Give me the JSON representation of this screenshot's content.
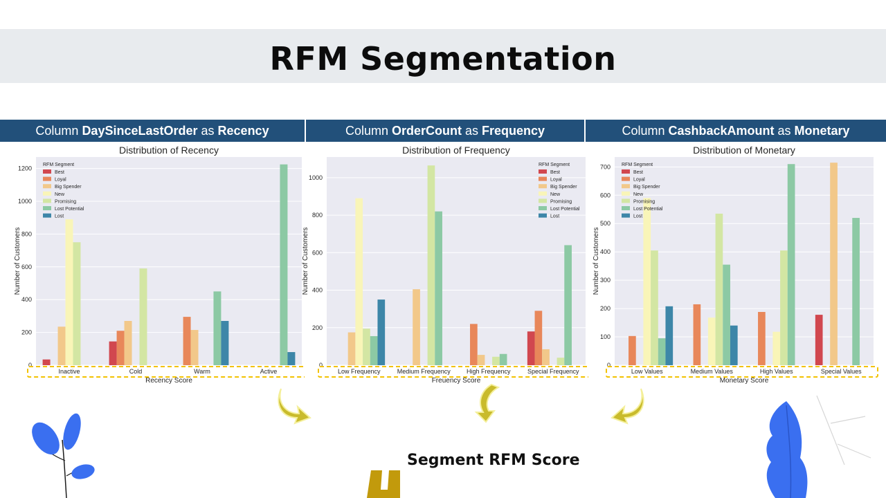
{
  "slide": {
    "title": "RFM Segmentation",
    "footer": "Segment RFM Score"
  },
  "headers": [
    {
      "prefix": "Column ",
      "column": "DaySinceLastOrder",
      "mid": " as ",
      "metric": "Recency"
    },
    {
      "prefix": "Column ",
      "column": "OrderCount",
      "mid": " as ",
      "metric": "Frequency"
    },
    {
      "prefix": "Column ",
      "column": "CashbackAmount",
      "mid": " as ",
      "metric": "Monetary"
    }
  ],
  "colors": {
    "header_bg": "#22507a",
    "title_band": "#e8ebee",
    "plot_bg": "#eaeaf2",
    "highlight": "#f2c200",
    "arrow": "#c9bb2c",
    "leaf_blue": "#3a6ff0"
  },
  "chart_data": [
    {
      "type": "bar",
      "title": "Distribution of Recency",
      "xlabel": "Recency Score",
      "ylabel": "Number of Customers",
      "categories": [
        "Inactive",
        "Cold",
        "Warm",
        "Active"
      ],
      "ylim": [
        0,
        1270
      ],
      "yticks": [
        0,
        200,
        400,
        600,
        800,
        1000,
        1200
      ],
      "grid": true,
      "legend_title": "RFM Segment",
      "legend_position": "top-left",
      "series": [
        {
          "name": "Best",
          "color": "#d1474f",
          "values": [
            35,
            145,
            0,
            0
          ]
        },
        {
          "name": "Loyal",
          "color": "#e8875a",
          "values": [
            0,
            210,
            295,
            0
          ]
        },
        {
          "name": "Big Spender",
          "color": "#f2c88a",
          "values": [
            235,
            270,
            215,
            0
          ]
        },
        {
          "name": "New",
          "color": "#f9f5b8",
          "values": [
            890,
            0,
            0,
            0
          ]
        },
        {
          "name": "Promising",
          "color": "#d3e6a3",
          "values": [
            750,
            590,
            0,
            0
          ]
        },
        {
          "name": "Lost Potential",
          "color": "#8cc9a4",
          "values": [
            0,
            0,
            450,
            1225
          ]
        },
        {
          "name": "Lost",
          "color": "#3d86a8",
          "values": [
            0,
            0,
            270,
            80
          ]
        }
      ]
    },
    {
      "type": "bar",
      "title": "Distribution of Frequency",
      "xlabel": "Freuency Score",
      "ylabel": "Number of Customers",
      "categories": [
        "Low Frequency",
        "Medium Frequency",
        "High Frequency",
        "Special Frequency"
      ],
      "ylim": [
        0,
        1110
      ],
      "yticks": [
        0,
        200,
        400,
        600,
        800,
        1000
      ],
      "grid": true,
      "legend_title": "RFM Segment",
      "legend_position": "top-right",
      "series": [
        {
          "name": "Best",
          "color": "#d1474f",
          "values": [
            0,
            0,
            0,
            180
          ]
        },
        {
          "name": "Loyal",
          "color": "#e8875a",
          "values": [
            0,
            0,
            220,
            290
          ]
        },
        {
          "name": "Big Spender",
          "color": "#f2c88a",
          "values": [
            175,
            405,
            55,
            85
          ]
        },
        {
          "name": "New",
          "color": "#f9f5b8",
          "values": [
            890,
            0,
            0,
            0
          ]
        },
        {
          "name": "Promising",
          "color": "#d3e6a3",
          "values": [
            195,
            1065,
            45,
            40
          ]
        },
        {
          "name": "Lost Potential",
          "color": "#8cc9a4",
          "values": [
            155,
            820,
            60,
            640
          ]
        },
        {
          "name": "Lost",
          "color": "#3d86a8",
          "values": [
            350,
            0,
            0,
            0
          ]
        }
      ]
    },
    {
      "type": "bar",
      "title": "Distribution of Monetary",
      "xlabel": "Monetary Score",
      "ylabel": "Number of Customers",
      "categories": [
        "Low Values",
        "Medium Values",
        "High Values",
        "Special Values"
      ],
      "ylim": [
        0,
        735
      ],
      "yticks": [
        0,
        100,
        200,
        300,
        400,
        500,
        600,
        700
      ],
      "grid": true,
      "legend_title": "RFM Segment",
      "legend_position": "top-left",
      "series": [
        {
          "name": "Best",
          "color": "#d1474f",
          "values": [
            0,
            0,
            0,
            178
          ]
        },
        {
          "name": "Loyal",
          "color": "#e8875a",
          "values": [
            103,
            215,
            188,
            0
          ]
        },
        {
          "name": "Big Spender",
          "color": "#f2c88a",
          "values": [
            0,
            0,
            0,
            715
          ]
        },
        {
          "name": "New",
          "color": "#f9f5b8",
          "values": [
            590,
            168,
            118,
            0
          ]
        },
        {
          "name": "Promising",
          "color": "#d3e6a3",
          "values": [
            405,
            535,
            405,
            0
          ]
        },
        {
          "name": "Lost Potential",
          "color": "#8cc9a4",
          "values": [
            95,
            355,
            710,
            520
          ]
        },
        {
          "name": "Lost",
          "color": "#3d86a8",
          "values": [
            208,
            140,
            0,
            0
          ]
        }
      ]
    }
  ]
}
